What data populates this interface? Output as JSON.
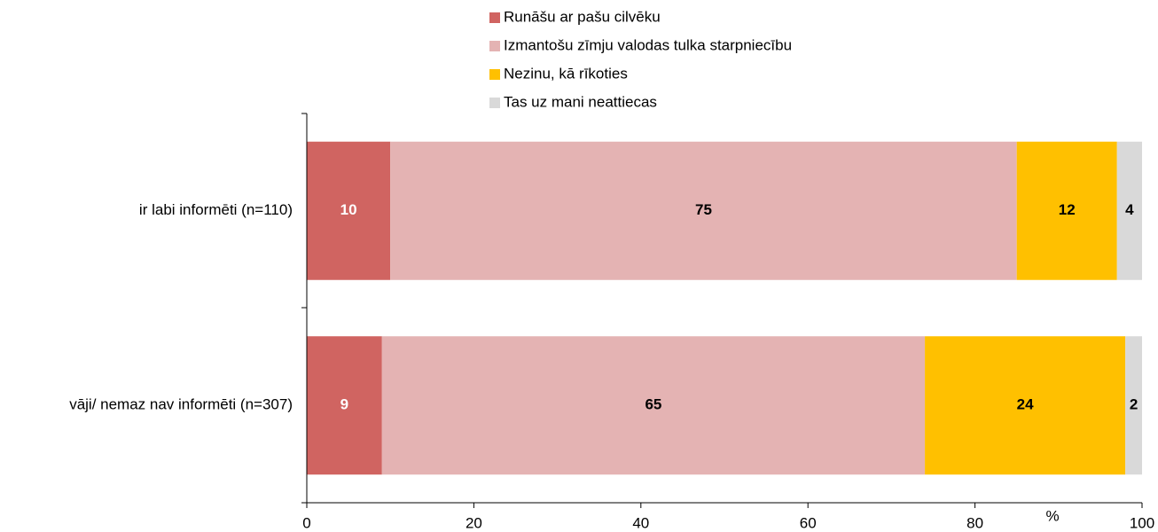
{
  "chart_data": {
    "type": "stacked_barh",
    "categories": [
      "ir labi informēti (n=110)",
      "vāji/ nemaz nav informēti (n=307)"
    ],
    "series": [
      {
        "name": "Runāšu ar pašu cilvēku",
        "color": "#d06461",
        "label_color": "#ffffff",
        "values": [
          10,
          9
        ]
      },
      {
        "name": "Izmantošu zīmju valodas tulka starpniecību",
        "color": "#e4b3b3",
        "label_color": "#000000",
        "values": [
          75,
          65
        ]
      },
      {
        "name": "Nezinu, kā rīkoties",
        "color": "#ffc000",
        "label_color": "#000000",
        "values": [
          12,
          24
        ]
      },
      {
        "name": "Tas uz mani neattiecas",
        "color": "#d9d9d9",
        "label_color": "#000000",
        "values": [
          4,
          2
        ]
      }
    ],
    "xlabel": "%",
    "xlim": [
      0,
      100
    ],
    "xticks": [
      0,
      20,
      40,
      60,
      80,
      100
    ]
  }
}
